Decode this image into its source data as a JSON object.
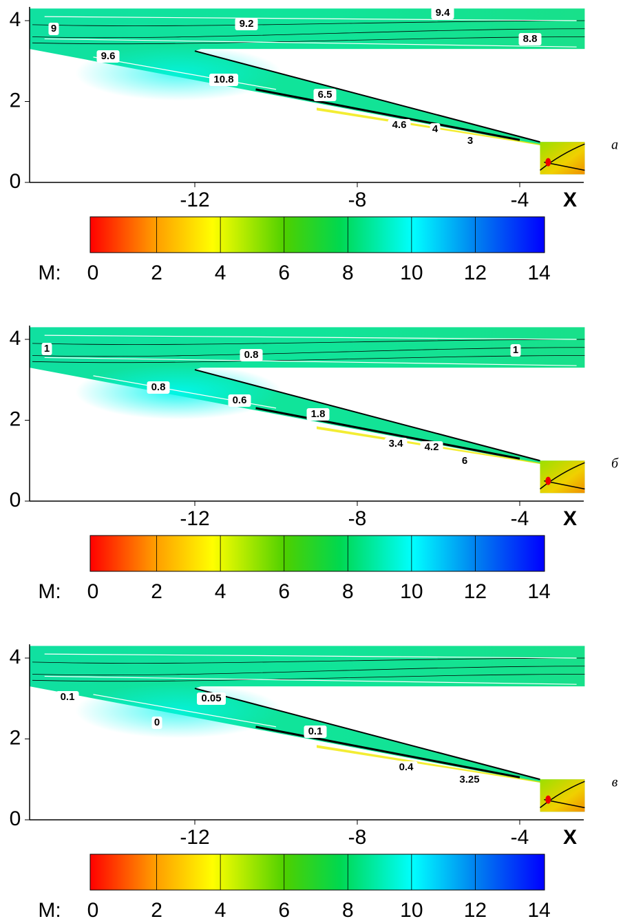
{
  "panels": [
    {
      "label": "a",
      "yticks": [
        "0",
        "2",
        "4"
      ],
      "xticks": [
        "-12",
        "-8",
        "-4"
      ],
      "x_axis_label": "X",
      "contour_labels": [
        "9",
        "9.2",
        "9.4",
        "8.8",
        "9.6",
        "10.8",
        "6.5",
        "4.6",
        "4",
        "3"
      ],
      "colorbar": {
        "title": "M:",
        "ticks": [
          "0",
          "2",
          "4",
          "6",
          "8",
          "10",
          "12",
          "14"
        ]
      }
    },
    {
      "label": "б",
      "yticks": [
        "0",
        "2",
        "4"
      ],
      "xticks": [
        "-12",
        "-8",
        "-4"
      ],
      "x_axis_label": "X",
      "contour_labels": [
        "1",
        "0.8",
        "1",
        "0.8",
        "0.6",
        "1.8",
        "3.4",
        "4.2",
        "6"
      ],
      "colorbar": {
        "title": "M:",
        "ticks": [
          "0",
          "2",
          "4",
          "6",
          "8",
          "10",
          "12",
          "14"
        ]
      }
    },
    {
      "label": "в",
      "yticks": [
        "0",
        "2",
        "4"
      ],
      "xticks": [
        "-12",
        "-8",
        "-4"
      ],
      "x_axis_label": "X",
      "contour_labels": [
        "0.1",
        "0.05",
        "0",
        "0.1",
        "0.4",
        "3.25"
      ],
      "colorbar": {
        "title": "M:",
        "ticks": [
          "0",
          "2",
          "4",
          "6",
          "8",
          "10",
          "12",
          "14"
        ]
      }
    }
  ]
}
